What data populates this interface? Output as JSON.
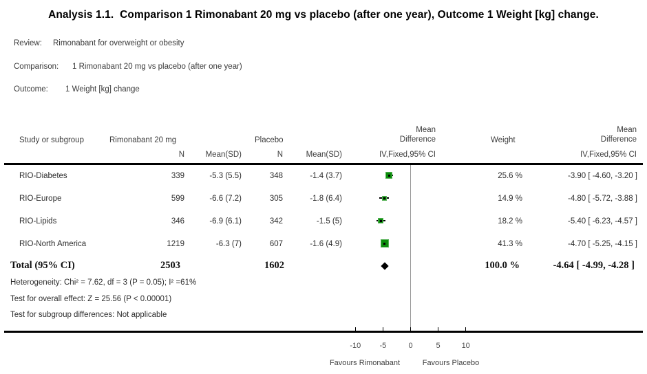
{
  "title": "Analysis 1.1.  Comparison 1 Rimonabant 20 mg vs placebo (after one year), Outcome 1 Weight [kg] change.",
  "meta": {
    "review_label": "Review:",
    "review_value": "Rimonabant for overweight or obesity",
    "comparison_label": "Comparison:",
    "comparison_value": "1 Rimonabant 20 mg vs placebo (after one year)",
    "outcome_label": "Outcome:",
    "outcome_value": "1 Weight [kg] change"
  },
  "table": {
    "headers": {
      "study": "Study or subgroup",
      "group1": "Rimonabant 20 mg",
      "group2": "Placebo",
      "md_plot": "Mean\nDifference",
      "weight": "Weight",
      "md_text": "Mean\nDifference",
      "n1": "N",
      "mean_sd1": "Mean(SD)",
      "n2": "N",
      "mean_sd2": "Mean(SD)",
      "ci_method_plot": "IV,Fixed,95% CI",
      "ci_method_text": "IV,Fixed,95% CI"
    },
    "rows": [
      {
        "study": "RIO-Diabetes",
        "n1": "339",
        "mean_sd1": "-5.3 (5.5)",
        "n2": "348",
        "mean_sd2": "-1.4 (3.7)",
        "weight": "25.6 %",
        "md_ci": "-3.90 [ -4.60, -3.20 ]"
      },
      {
        "study": "RIO-Europe",
        "n1": "599",
        "mean_sd1": "-6.6 (7.2)",
        "n2": "305",
        "mean_sd2": "-1.8 (6.4)",
        "weight": "14.9 %",
        "md_ci": "-4.80 [ -5.72, -3.88 ]"
      },
      {
        "study": "RIO-Lipids",
        "n1": "346",
        "mean_sd1": "-6.9 (6.1)",
        "n2": "342",
        "mean_sd2": "-1.5 (5)",
        "weight": "18.2 %",
        "md_ci": "-5.40 [ -6.23, -4.57 ]"
      },
      {
        "study": "RIO-North America",
        "n1": "1219",
        "mean_sd1": "-6.3 (7)",
        "n2": "607",
        "mean_sd2": "-1.6 (4.9)",
        "weight": "41.3 %",
        "md_ci": "-4.70 [ -5.25, -4.15 ]"
      }
    ],
    "total": {
      "label": "Total (95% CI)",
      "n1": "2503",
      "n2": "1602",
      "weight": "100.0 %",
      "md_ci": "-4.64 [ -4.99, -4.28 ]"
    }
  },
  "stats": {
    "heterogeneity": "Heterogeneity: Chi² = 7.62, df = 3 (P = 0.05); I² =61%",
    "overall_effect": "Test for overall effect: Z = 25.56 (P < 0.00001)",
    "subgroup_differences": "Test for subgroup differences: Not applicable"
  },
  "chart_data": {
    "type": "forest",
    "effect_measure": "Mean Difference IV,Fixed,95% CI",
    "studies": [
      {
        "name": "RIO-Diabetes",
        "md": -3.9,
        "ci_low": -4.6,
        "ci_high": -3.2,
        "weight_pct": 25.6
      },
      {
        "name": "RIO-Europe",
        "md": -4.8,
        "ci_low": -5.72,
        "ci_high": -3.88,
        "weight_pct": 14.9
      },
      {
        "name": "RIO-Lipids",
        "md": -5.4,
        "ci_low": -6.23,
        "ci_high": -4.57,
        "weight_pct": 18.2
      },
      {
        "name": "RIO-North America",
        "md": -4.7,
        "ci_low": -5.25,
        "ci_high": -4.15,
        "weight_pct": 41.3
      }
    ],
    "total": {
      "md": -4.64,
      "ci_low": -4.99,
      "ci_high": -4.28,
      "weight_pct": 100.0
    },
    "axis": {
      "ticks": [
        -10,
        -5,
        0,
        5,
        10
      ],
      "min": -12.5,
      "max": 12.5
    },
    "favours_left": "Favours Rimonabant",
    "favours_right": "Favours Placebo",
    "marker_color": "#0c8d0c",
    "marker_border_color": "#58b358",
    "diamond_color": "#000000"
  }
}
